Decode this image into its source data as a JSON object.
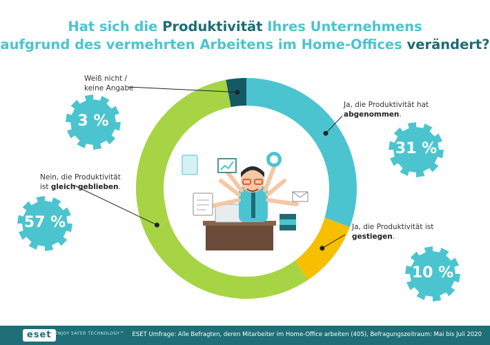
{
  "title": {
    "line1_pre": "Hat sich die ",
    "line1_hl": "Produktivität",
    "line1_post": " Ihres Unternehmens",
    "line2_pre": "aufgrund des vermehrten Arbeitens im Home-Offices ",
    "line2_hl": "verändert?"
  },
  "chart_data": {
    "type": "pie",
    "title": "Hat sich die Produktivität Ihres Unternehmens aufgrund des vermehrten Arbeitens im Home-Offices verändert?",
    "slices": [
      {
        "label": "Ja, die Produktivität hat abgenommen.",
        "value": 31,
        "display": "31 %",
        "color": "#4bc4cf"
      },
      {
        "label": "Ja, die Produktivität ist gestiegen.",
        "value": 10,
        "display": "10 %",
        "color": "#f6bf00"
      },
      {
        "label": "Nein, die Produktivität ist gleich geblieben.",
        "value": 57,
        "display": "57 %",
        "color": "#a6d444"
      },
      {
        "label": "Weiß nicht / keine Angabe",
        "value": 3,
        "display": "3 %",
        "color": "#145a64"
      }
    ]
  },
  "labels": {
    "abgenommen_l1": "Ja, die Produktivität hat",
    "abgenommen_l2": "abgenommen",
    "gestiegen_l1": "Ja, die Produktivität ist",
    "gestiegen_l2": "gestiegen",
    "gleich_l1": "Nein, die Produktivität",
    "gleich_l2_pre": "ist ",
    "gleich_l2_b": "gleich geblieben",
    "weiss_l1": "Weiß nicht /",
    "weiss_l2": "keine Angabe"
  },
  "footer": {
    "logo": "eset",
    "tagline": "ENJOY SAFER TECHNOLOGY™",
    "note": "ESET Umfrage: Alle Befragten, deren Mitarbeiter im Home-Office arbeiten (405), Befragungszeitraum: Mai bis Juli 2020"
  },
  "colors": {
    "title": "#4bc4cf",
    "title_highlight": "#1f6b73",
    "badge": "#4bc4cf",
    "footer_bg": "#1e6f77"
  }
}
